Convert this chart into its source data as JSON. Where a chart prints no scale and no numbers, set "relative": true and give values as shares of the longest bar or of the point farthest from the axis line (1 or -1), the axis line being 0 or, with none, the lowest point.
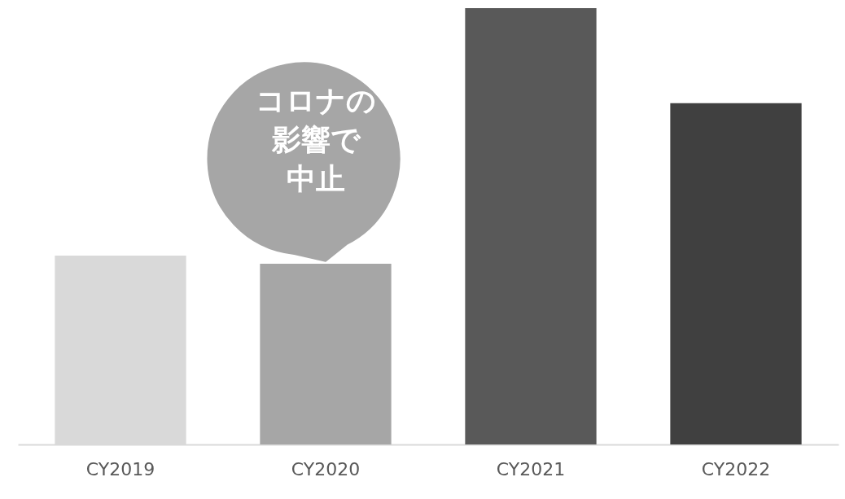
{
  "chart_data": {
    "type": "bar",
    "relative": true,
    "categories": [
      "CY2019",
      "CY2020",
      "CY2021",
      "CY2022"
    ],
    "values": [
      0.433,
      0.414,
      1,
      0.782
    ],
    "colors": [
      "#d9d9d9",
      "#a6a6a6",
      "#595959",
      "#404040"
    ],
    "annotations": [
      "コロナの影響で中止"
    ]
  }
}
